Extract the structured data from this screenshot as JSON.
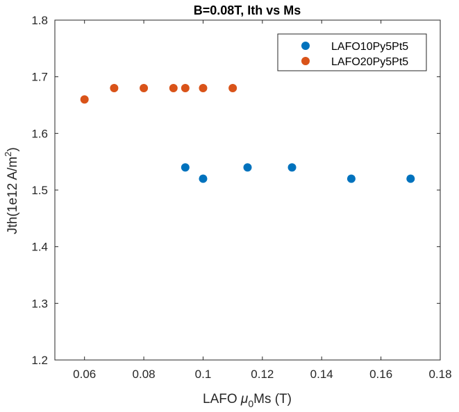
{
  "chart_data": {
    "type": "scatter",
    "title": "B=0.08T, Ith vs Ms",
    "xlabel": {
      "pre": "LAFO ",
      "mu": "μ",
      "sub": "0",
      "post": "Ms (T)"
    },
    "ylabel": {
      "pre": "Jth(1e12 A/m",
      "sup": "2",
      "post": ")"
    },
    "xlim": [
      0.05,
      0.18
    ],
    "ylim": [
      1.2,
      1.8
    ],
    "xticks": [
      0.06,
      0.08,
      0.1,
      0.12,
      0.14,
      0.16,
      0.18
    ],
    "xtick_labels": [
      "0.06",
      "0.08",
      "0.1",
      "0.12",
      "0.14",
      "0.16",
      "0.18"
    ],
    "yticks": [
      1.2,
      1.3,
      1.4,
      1.5,
      1.6,
      1.7,
      1.8
    ],
    "ytick_labels": [
      "1.2",
      "1.3",
      "1.4",
      "1.5",
      "1.6",
      "1.7",
      "1.8"
    ],
    "grid": false,
    "legend_position": "top-right",
    "series": [
      {
        "name": "LAFO10Py5Pt5",
        "color": "#0072BD",
        "x": [
          0.094,
          0.1,
          0.115,
          0.13,
          0.15,
          0.17
        ],
        "y": [
          1.54,
          1.52,
          1.54,
          1.54,
          1.52,
          1.52
        ]
      },
      {
        "name": "LAFO20Py5Pt5",
        "color": "#D95319",
        "x": [
          0.06,
          0.07,
          0.08,
          0.09,
          0.094,
          0.1,
          0.11
        ],
        "y": [
          1.66,
          1.68,
          1.68,
          1.68,
          1.68,
          1.68,
          1.68
        ]
      }
    ]
  }
}
